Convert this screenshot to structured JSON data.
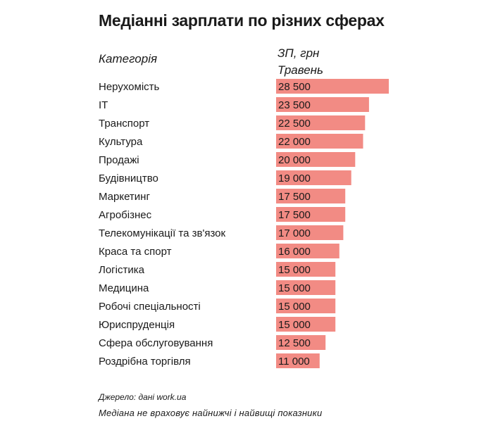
{
  "chart_data": {
    "type": "bar",
    "orientation": "horizontal",
    "title": "Медіанні зарплати по різних сферах",
    "category_header": "Категорія",
    "value_header_line1": "ЗП, грн",
    "value_header_line2": "Травень",
    "categories": [
      "Нерухомість",
      "IT",
      "Транспорт",
      "Культура",
      "Продажі",
      "Будівництво",
      "Маркетинг",
      "Агробізнес",
      "Телекомунікації та зв'язок",
      "Краса та спорт",
      "Логістика",
      "Медицина",
      "Робочі спеціальності",
      "Юриспруденція",
      "Сфера обслуговування",
      "Роздрібна торгівля"
    ],
    "values": [
      28500,
      23500,
      22500,
      22000,
      20000,
      19000,
      17500,
      17500,
      17000,
      16000,
      15000,
      15000,
      15000,
      15000,
      12500,
      11000
    ],
    "value_labels": [
      "28 500",
      "23 500",
      "22 500",
      "22 000",
      "20 000",
      "19 000",
      "17 500",
      "17 500",
      "17 000",
      "16 000",
      "15 000",
      "15 000",
      "15 000",
      "15 000",
      "12 500",
      "11 000"
    ],
    "xlim": [
      0,
      28500
    ],
    "bar_color": "#f28b84",
    "grid": false,
    "legend": "none"
  },
  "footer": {
    "source": "Джерело: дані work.ua",
    "note": "Медіана не враховує найнижчі і найвищі показники"
  }
}
